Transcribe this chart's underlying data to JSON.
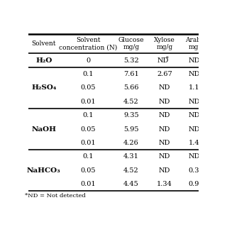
{
  "col_headers": [
    "Solvent",
    "Solvent\nconcentration (N)",
    "Glucose\nmg/g",
    "Xylose\nmg/g",
    "Arabi\nmg"
  ],
  "rows": [
    {
      "solvent": "H₂O",
      "conc": "0",
      "glucose": "5.32",
      "xylose": "ND*",
      "arabi": "ND"
    },
    {
      "solvent": "H₂SO₄",
      "conc": "0.1",
      "glucose": "7.61",
      "xylose": "2.67",
      "arabi": "ND"
    },
    {
      "solvent": "",
      "conc": "0.05",
      "glucose": "5.66",
      "xylose": "ND",
      "arabi": "1.1"
    },
    {
      "solvent": "",
      "conc": "0.01",
      "glucose": "4.52",
      "xylose": "ND",
      "arabi": "ND"
    },
    {
      "solvent": "NaOH",
      "conc": "0.1",
      "glucose": "9.35",
      "xylose": "ND",
      "arabi": "ND"
    },
    {
      "solvent": "",
      "conc": "0.05",
      "glucose": "5.95",
      "xylose": "ND",
      "arabi": "ND"
    },
    {
      "solvent": "",
      "conc": "0.01",
      "glucose": "4.26",
      "xylose": "ND",
      "arabi": "1.4"
    },
    {
      "solvent": "NaHCO₃",
      "conc": "0.1",
      "glucose": "4.31",
      "xylose": "ND",
      "arabi": "ND"
    },
    {
      "solvent": "",
      "conc": "0.05",
      "glucose": "4.52",
      "xylose": "ND",
      "arabi": "0.3"
    },
    {
      "solvent": "",
      "conc": "0.01",
      "glucose": "4.45",
      "xylose": "1.34",
      "arabi": "0.9"
    }
  ],
  "footer": "*ND = Not detected",
  "group_dividers": [
    1,
    4,
    7
  ],
  "group_sizes": {
    "H₂O": 1,
    "H₂SO₄": 3,
    "NaOH": 3,
    "NaHCO₃": 3
  }
}
